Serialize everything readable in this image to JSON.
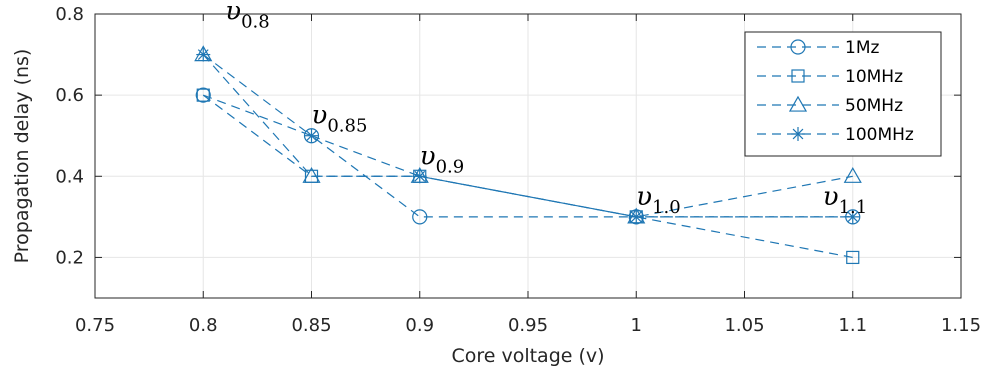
{
  "chart_data": {
    "type": "line",
    "title": "",
    "xlabel": "Core voltage (v)",
    "ylabel": "Propagation delay (ns)",
    "xlim": [
      0.75,
      1.15
    ],
    "ylim": [
      0.1,
      0.8
    ],
    "xticks": [
      "0.75",
      "0.8",
      "0.85",
      "0.9",
      "0.95",
      "1",
      "1.05",
      "1.1",
      "1.15"
    ],
    "yticks": [
      "0.2",
      "0.4",
      "0.6",
      "0.8"
    ],
    "grid": true,
    "legend_position": "top-right",
    "line_color": "#1f77b4",
    "series": [
      {
        "name": "1Mz",
        "marker": "circle",
        "x": [
          0.8,
          0.85,
          0.9,
          1.0,
          1.1
        ],
        "values": [
          0.6,
          0.5,
          0.3,
          0.3,
          0.3
        ]
      },
      {
        "name": "10MHz",
        "marker": "square",
        "x": [
          0.8,
          0.85,
          0.9,
          1.0,
          1.1
        ],
        "values": [
          0.6,
          0.4,
          0.4,
          0.3,
          0.2
        ]
      },
      {
        "name": "50MHz",
        "marker": "triangle",
        "x": [
          0.8,
          0.85,
          0.9,
          1.0,
          1.1
        ],
        "values": [
          0.7,
          0.4,
          0.4,
          0.3,
          0.4
        ]
      },
      {
        "name": "100MHz",
        "marker": "star",
        "x": [
          0.8,
          0.85,
          0.9,
          1.0,
          1.1
        ],
        "values": [
          0.7,
          0.5,
          0.4,
          0.3,
          0.3
        ]
      }
    ],
    "annotations": [
      {
        "base": "υ",
        "sub": "0.8",
        "x": 0.8,
        "y": 0.7
      },
      {
        "base": "υ",
        "sub": "0.85",
        "x": 0.85,
        "y": 0.5
      },
      {
        "base": "υ",
        "sub": "0.9",
        "x": 0.9,
        "y": 0.4
      },
      {
        "base": "υ",
        "sub": "1.0",
        "x": 1.0,
        "y": 0.3
      },
      {
        "base": "υ",
        "sub": "1.1",
        "x": 1.1,
        "y": 0.3
      }
    ]
  }
}
